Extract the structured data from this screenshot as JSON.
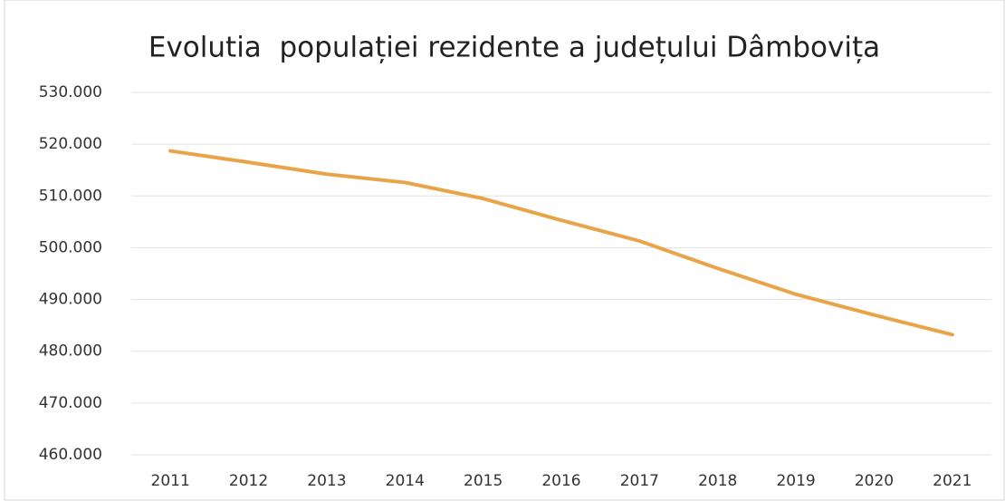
{
  "chart_data": {
    "type": "line",
    "title": "Evolutia  populației rezidente a județului Dâmbovița",
    "categories": [
      "2011",
      "2012",
      "2013",
      "2014",
      "2015",
      "2016",
      "2017",
      "2018",
      "2019",
      "2020",
      "2021"
    ],
    "series": [
      {
        "color": "#e9a449",
        "values": [
          518700,
          516500,
          514200,
          512600,
          509500,
          505300,
          501300,
          496000,
          491000,
          487000,
          483200
        ]
      }
    ],
    "ylim": [
      460000,
      530000
    ],
    "yticks": [
      {
        "value": 460000,
        "label": "460.000"
      },
      {
        "value": 470000,
        "label": "470.000"
      },
      {
        "value": 480000,
        "label": "480.000"
      },
      {
        "value": 490000,
        "label": "490.000"
      },
      {
        "value": 500000,
        "label": "500.000"
      },
      {
        "value": 510000,
        "label": "510.000"
      },
      {
        "value": 520000,
        "label": "520.000"
      },
      {
        "value": 530000,
        "label": "530.000"
      }
    ],
    "grid": true
  }
}
